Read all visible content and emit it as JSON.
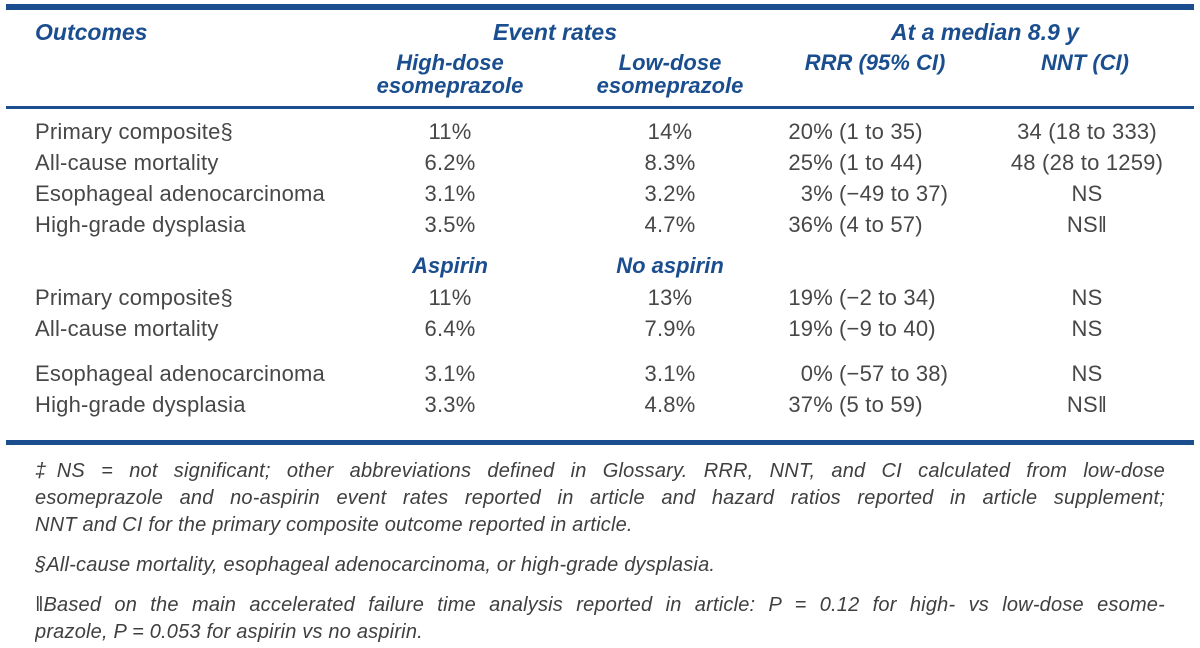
{
  "colors": {
    "navy_accent": "#1a4e8e",
    "body_text": "#474747",
    "footnote_text": "#3f3f3f",
    "background": "#ffffff"
  },
  "table": {
    "header": {
      "outcomes_label": "Outcomes",
      "event_rates_label": "Event rates",
      "median_label": "At a median 8.9 y",
      "high_dose_line1": "High-dose",
      "high_dose_line2": "esomeprazole",
      "low_dose_line1": "Low-dose",
      "low_dose_line2": "esomeprazole",
      "rrr_label": "RRR (95% CI)",
      "nnt_label": "NNT (CI)"
    },
    "section1_rows": [
      {
        "outcome": "Primary composite§",
        "rate1": "11%",
        "rate2": "14%",
        "rrr": "20%",
        "ci": "(1 to 35)",
        "nnt": "34 (18 to 333)"
      },
      {
        "outcome": "All-cause mortality",
        "rate1": "6.2%",
        "rate2": "8.3%",
        "rrr": "25%",
        "ci": "(1 to 44)",
        "nnt": "48 (28 to 1259)"
      },
      {
        "outcome": "Esophageal adenocarcinoma",
        "rate1": "3.1%",
        "rate2": "3.2%",
        "rrr": "3%",
        "ci": "(−49 to 37)",
        "nnt": "NS"
      },
      {
        "outcome": "High-grade dysplasia",
        "rate1": "3.5%",
        "rate2": "4.7%",
        "rrr": "36%",
        "ci": "(4 to 57)",
        "nnt": "NS‖"
      }
    ],
    "section2": {
      "subhead_col1": "Aspirin",
      "subhead_col2": "No aspirin",
      "rows": [
        {
          "outcome": "Primary composite§",
          "rate1": "11%",
          "rate2": "13%",
          "rrr": "19%",
          "ci": "(−2 to 34)",
          "nnt": "NS"
        },
        {
          "outcome": "All-cause mortality",
          "rate1": "6.4%",
          "rate2": "7.9%",
          "rrr": "19%",
          "ci": "(−9 to 40)",
          "nnt": "NS"
        },
        {
          "outcome": "Esophageal adenocarcinoma",
          "rate1": "3.1%",
          "rate2": "3.1%",
          "rrr": "0%",
          "ci": "(−57 to 38)",
          "nnt": "NS"
        },
        {
          "outcome": "High-grade dysplasia",
          "rate1": "3.3%",
          "rate2": "4.8%",
          "rrr": "37%",
          "ci": "(5 to 59)",
          "nnt": "NS‖"
        }
      ]
    }
  },
  "footnotes": {
    "fn1": {
      "line1": "‡NS = not significant; other abbreviations defined in Glossary. RRR, NNT, and CI calculated from low-dose",
      "line2": "esomeprazole and no-aspirin event rates reported in article and hazard ratios reported in article supplement;",
      "line3": "NNT and CI for the primary composite outcome reported in article."
    },
    "fn2": "§All-cause mortality, esophageal adenocarcinoma, or high-grade dysplasia.",
    "fn3": {
      "line1": "‖Based on the main accelerated failure time analysis reported in article: P = 0.12 for high- vs low-dose esome-",
      "line2": "prazole, P = 0.053 for aspirin vs no aspirin."
    }
  }
}
